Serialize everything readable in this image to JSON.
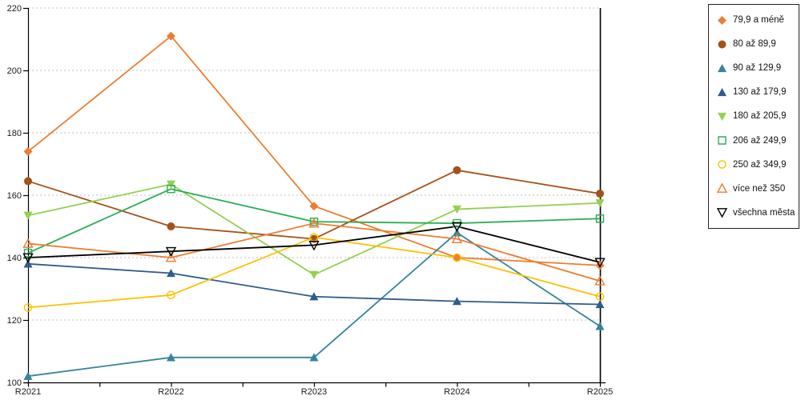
{
  "chart_data": {
    "type": "line",
    "categories": [
      "R2021",
      "R2022",
      "R2023",
      "R2024",
      "R2025"
    ],
    "series": [
      {
        "name": "79,9 a méně",
        "color": "#ED7D31",
        "marker": "diamond",
        "fill": "filled",
        "values": [
          174,
          211,
          156.5,
          140,
          137.5
        ]
      },
      {
        "name": "80 až 89,9",
        "color": "#A5511A",
        "marker": "circle",
        "fill": "filled",
        "values": [
          164.5,
          150,
          146,
          168,
          160.5
        ]
      },
      {
        "name": "90 až 129,9",
        "color": "#35849C",
        "marker": "triangle-up",
        "fill": "filled",
        "values": [
          102,
          108,
          108,
          148,
          118
        ]
      },
      {
        "name": "130 až 179,9",
        "color": "#2F5C8A",
        "marker": "triangle-up",
        "fill": "filled",
        "values": [
          138,
          135,
          127.5,
          126,
          125
        ]
      },
      {
        "name": "180 až 205,9",
        "color": "#92D050",
        "marker": "triangle-down",
        "fill": "filled",
        "values": [
          153.5,
          163.5,
          134.5,
          155.5,
          157.5
        ]
      },
      {
        "name": "206 až 249,9",
        "color": "#2BAD52",
        "marker": "square",
        "fill": "hollow",
        "values": [
          141.5,
          162,
          151.5,
          151,
          152.5
        ]
      },
      {
        "name": "250 až 349,9",
        "color": "#FFC000",
        "marker": "circle",
        "fill": "hollow",
        "values": [
          124,
          128,
          146.5,
          140,
          127.5
        ]
      },
      {
        "name": "více než 350",
        "color": "#ED7D31",
        "marker": "triangle-up",
        "fill": "hollow",
        "values": [
          144.5,
          140,
          151,
          146,
          132.5
        ]
      },
      {
        "name": "všechna města",
        "color": "#000000",
        "marker": "triangle-down",
        "fill": "hollow",
        "values": [
          140,
          142,
          144,
          150,
          138.5
        ]
      }
    ],
    "ylim": [
      100,
      220
    ],
    "yticks": [
      100,
      120,
      140,
      160,
      180,
      200,
      220
    ],
    "grid": "horizontal-dotted",
    "gridline_color": "#BFBFBF",
    "axis_color": "#000000",
    "legend_position": "right"
  }
}
